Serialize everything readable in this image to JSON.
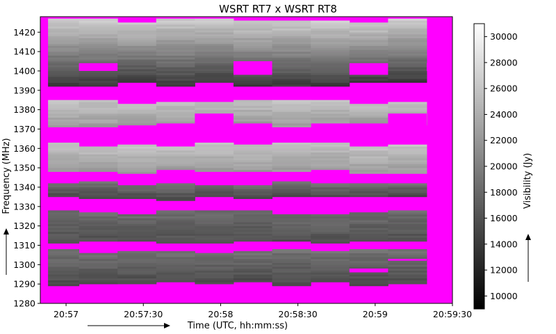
{
  "chart_data": {
    "type": "heatmap",
    "title": "WSRT RT7 x WSRT RT8",
    "xlabel": "Time (UTC, hh:mm:ss)",
    "ylabel": "Frequency (MHz)",
    "x_ticks": [
      "20:57",
      "20:57:30",
      "20:58",
      "20:58:30",
      "20:59",
      "20:59:30"
    ],
    "x_tick_seconds": [
      10,
      40,
      70,
      100,
      130,
      160
    ],
    "xlim_seconds": [
      0,
      160
    ],
    "ylim": [
      1280,
      1428
    ],
    "y_ticks": [
      1280,
      1290,
      1300,
      1310,
      1320,
      1330,
      1340,
      1350,
      1360,
      1370,
      1380,
      1390,
      1400,
      1410,
      1420
    ],
    "colorbar": {
      "label": "Visibility (Jy)",
      "range": [
        9000,
        31000
      ],
      "ticks": [
        10000,
        12000,
        14000,
        16000,
        18000,
        20000,
        22000,
        24000,
        26000,
        28000,
        30000
      ],
      "colormap": "gray"
    },
    "flag_color": "#ff00ff",
    "time_block_edges_seconds": [
      0,
      3,
      15,
      30,
      45,
      60,
      75,
      90,
      105,
      120,
      135,
      150,
      165
    ],
    "flagged_bands_MHz": [
      [
        1426,
        1430
      ],
      [
        1393,
        1398
      ],
      [
        1367,
        1372
      ],
      [
        1354,
        1359
      ],
      [
        1342,
        1346
      ],
      [
        1330,
        1333
      ],
      [
        1320,
        1322
      ],
      [
        1305,
        1310
      ]
    ],
    "bands": [
      {
        "lo": 1393,
        "hi": 1426,
        "vmin": 14000,
        "vmax": 27000
      },
      {
        "lo": 1372,
        "hi": 1384,
        "vmin": 22500,
        "vmax": 26000
      },
      {
        "lo": 1348,
        "hi": 1362,
        "vmin": 22500,
        "vmax": 26000
      },
      {
        "lo": 1334,
        "hi": 1342,
        "vmin": 15500,
        "vmax": 19000
      },
      {
        "lo": 1312,
        "hi": 1327,
        "vmin": 16000,
        "vmax": 18500
      },
      {
        "lo": 1290,
        "hi": 1307,
        "vmin": 15500,
        "vmax": 19000
      }
    ],
    "flag_patches": [
      {
        "t0": 15,
        "t1": 30,
        "lo": 1400,
        "hi": 1404
      },
      {
        "t0": 75,
        "t1": 90,
        "lo": 1398,
        "hi": 1405
      },
      {
        "t0": 120,
        "t1": 135,
        "lo": 1398,
        "hi": 1404
      },
      {
        "t0": 150,
        "t1": 165,
        "lo": 1400,
        "hi": 1404
      },
      {
        "t0": 60,
        "t1": 75,
        "lo": 1368,
        "hi": 1378
      },
      {
        "t0": 135,
        "t1": 150,
        "lo": 1370,
        "hi": 1378
      },
      {
        "t0": 135,
        "t1": 150,
        "lo": 1302,
        "hi": 1303
      },
      {
        "t0": 120,
        "t1": 135,
        "lo": 1296,
        "hi": 1298
      }
    ]
  }
}
